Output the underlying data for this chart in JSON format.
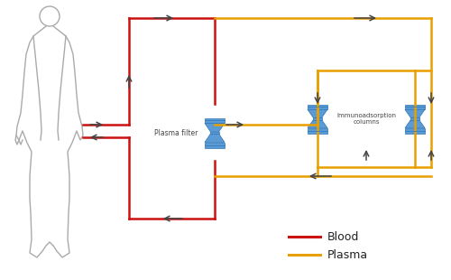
{
  "bg_color": "#ffffff",
  "blood_color": "#cc1111",
  "plasma_color": "#e8a000",
  "arrow_color": "#444444",
  "column_color": "#5b9bd5",
  "column_dark": "#2e75b6",
  "legend_blood_label": "Blood",
  "legend_plasma_label": "Plasma",
  "plasma_filter_label": "Plasma filter",
  "immunoadsorption_label": "Immunoadsorption\ncolumns",
  "line_width": 1.8,
  "body_color": "#aaaaaa"
}
